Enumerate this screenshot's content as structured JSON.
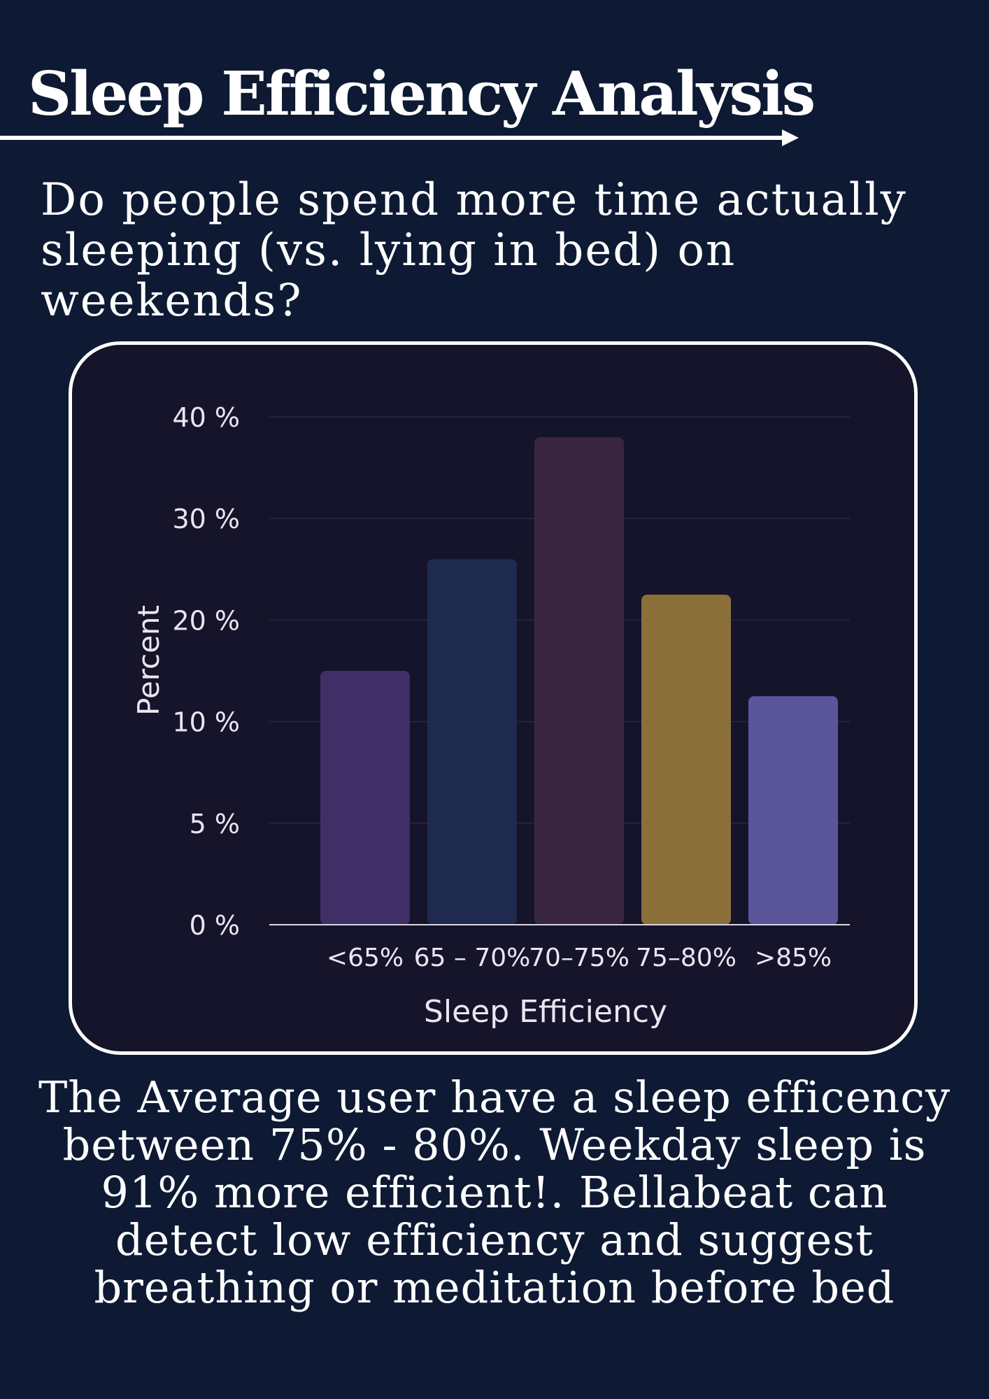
{
  "page": {
    "title": "Sleep Efficiency Analysis",
    "question": "Do people spend more time actually sleeping (vs. lying in bed) on weekends?",
    "summary": "The Average user have a sleep efficency between 75% - 80%. Weekday sleep is 91% more efficient!. Bellabeat can detect low efficiency and suggest breathing or meditation before bed",
    "colors": {
      "background": "#0e1a33",
      "card": "#15142a",
      "text": "#ffffff"
    }
  },
  "chart_data": {
    "type": "bar",
    "title": "",
    "xlabel": "Sleep Efficiency",
    "ylabel": "Percent",
    "categories": [
      "<65%",
      "65 – 70%",
      "70–75%",
      "75–80%",
      ">85%"
    ],
    "values": [
      15,
      26,
      38,
      22.5,
      12.5
    ],
    "bar_colors": [
      "#3f2f66",
      "#1f2a4f",
      "#3a2540",
      "#8a7038",
      "#5b5699"
    ],
    "y_ticks": [
      {
        "value": 0,
        "label": "0 %"
      },
      {
        "value": 5,
        "label": "5 %"
      },
      {
        "value": 10,
        "label": "10 %"
      },
      {
        "value": 20,
        "label": "20 %"
      },
      {
        "value": 30,
        "label": "30 %"
      },
      {
        "value": 40,
        "label": "40 %"
      }
    ],
    "ylim": [
      0,
      40
    ],
    "grid": true,
    "legend": "none"
  }
}
